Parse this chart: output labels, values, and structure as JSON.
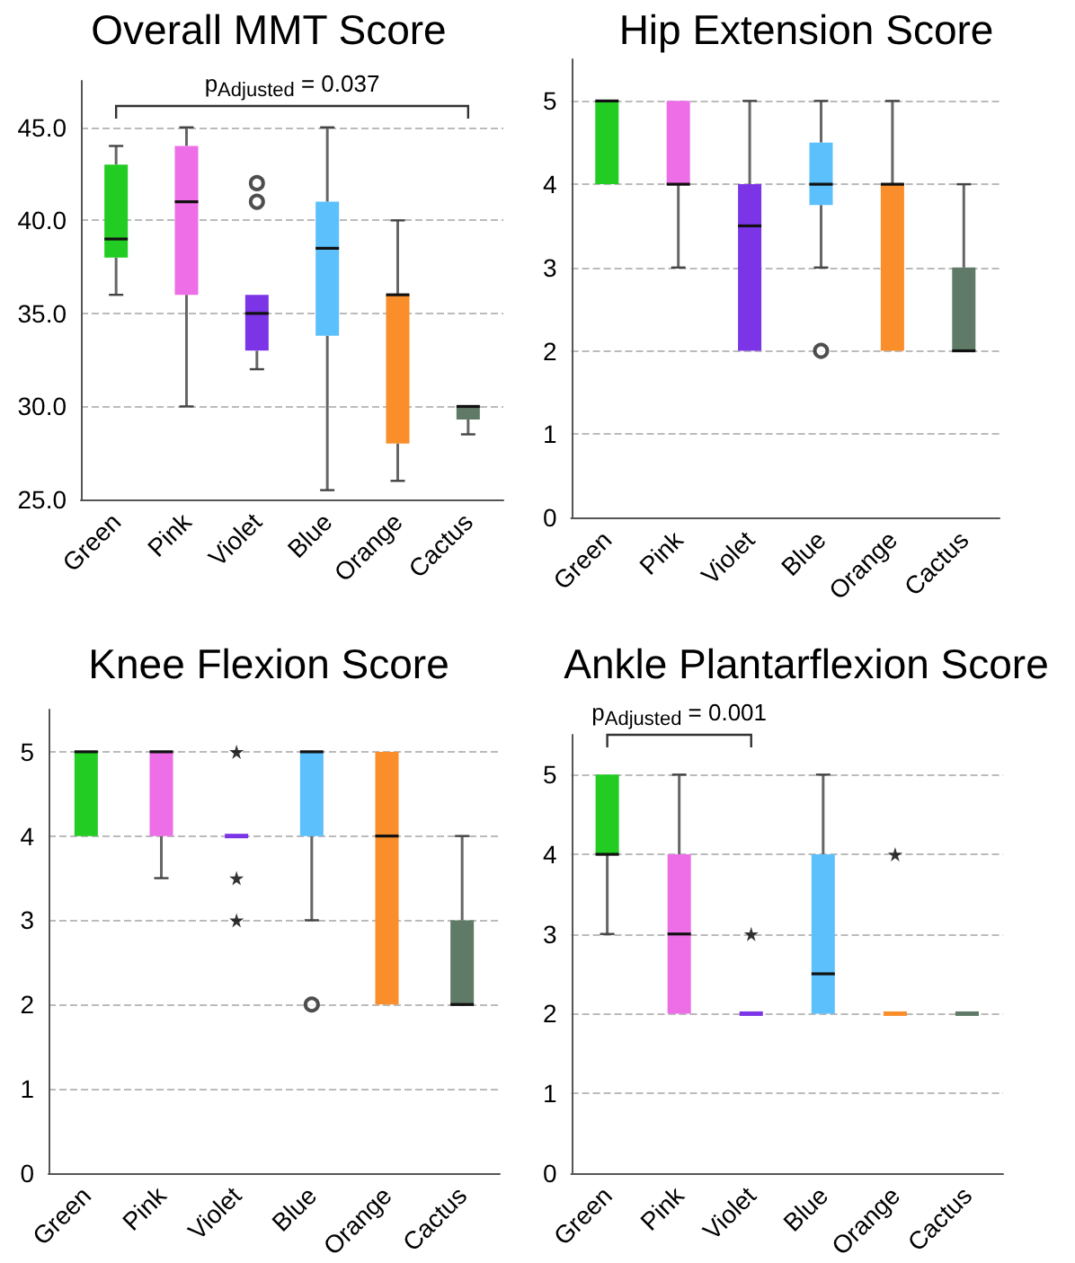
{
  "chart_data": [
    {
      "type": "box",
      "title": "Overall MMT Score",
      "categories": [
        "Green",
        "Pink",
        "Violet",
        "Blue",
        "Orange",
        "Cactus"
      ],
      "colors": [
        "#22cc22",
        "#ee6ee8",
        "#7b35e6",
        "#5bc0fb",
        "#fa8e2a",
        "#5f7a66"
      ],
      "boxes": [
        {
          "low": 36,
          "q1": 38,
          "median": 39,
          "q3": 43,
          "high": 44
        },
        {
          "low": 30,
          "q1": 36,
          "median": 41,
          "q3": 44,
          "high": 45
        },
        {
          "low": 32,
          "q1": 33,
          "median": 35,
          "q3": 36,
          "high": 36,
          "outliers": [
            41,
            42
          ]
        },
        {
          "low": 25.5,
          "q1": 33.8,
          "median": 38.5,
          "q3": 41,
          "high": 45
        },
        {
          "low": 26,
          "q1": 28,
          "median": 36,
          "q3": 36,
          "high": 40
        },
        {
          "low": 28.5,
          "q1": 29.3,
          "median": 30,
          "q3": 30,
          "high": 30
        }
      ],
      "ylim": [
        25,
        47.5
      ],
      "yticks": [
        {
          "value": 25,
          "label": "25.0"
        },
        {
          "value": 30,
          "label": "30.0"
        },
        {
          "value": 35,
          "label": "35.0"
        },
        {
          "value": 40,
          "label": "40.0"
        },
        {
          "value": 45,
          "label": "45.0"
        }
      ],
      "grid": "y",
      "marker": "circle",
      "annotations": [
        "p$_{Adjusted}$ = 0.037"
      ]
    },
    {
      "type": "box",
      "title": "Hip Extension Score",
      "categories": [
        "Green",
        "Pink",
        "Violet",
        "Blue",
        "Orange",
        "Cactus"
      ],
      "colors": [
        "#22cc22",
        "#ee6ee8",
        "#7b35e6",
        "#5bc0fb",
        "#fa8e2a",
        "#5f7a66"
      ],
      "boxes": [
        {
          "low": 4,
          "q1": 4,
          "median": 5,
          "q3": 5,
          "high": 5
        },
        {
          "low": 3,
          "q1": 4,
          "median": 4,
          "q3": 5,
          "high": 5
        },
        {
          "low": 2,
          "q1": 2,
          "median": 3.5,
          "q3": 4,
          "high": 5
        },
        {
          "low": 3,
          "q1": 3.75,
          "median": 4,
          "q3": 4.5,
          "high": 5,
          "outliers": [
            2
          ]
        },
        {
          "low": 2,
          "q1": 2,
          "median": 4,
          "q3": 4,
          "high": 5
        },
        {
          "low": 2,
          "q1": 2,
          "median": 2,
          "q3": 3,
          "high": 4
        }
      ],
      "ylim": [
        0,
        5.5
      ],
      "yticks": [
        0,
        1,
        2,
        3,
        4,
        5
      ],
      "grid": "y",
      "marker": "circle"
    },
    {
      "type": "box",
      "title": "Knee Flexion Score",
      "categories": [
        "Green",
        "Pink",
        "Violet",
        "Blue",
        "Orange",
        "Cactus"
      ],
      "colors": [
        "#22cc22",
        "#ee6ee8",
        "#7b35e6",
        "#5bc0fb",
        "#fa8e2a",
        "#5f7a66"
      ],
      "boxes": [
        {
          "low": 4,
          "q1": 4,
          "median": 5,
          "q3": 5,
          "high": 5
        },
        {
          "low": 3.5,
          "q1": 4,
          "median": 5,
          "q3": 5,
          "high": 5
        },
        {
          "low": 4,
          "q1": 4,
          "median": 4,
          "q3": 4,
          "high": 4
        },
        {
          "low": 3,
          "q1": 4,
          "median": 5,
          "q3": 5,
          "high": 5,
          "outliers": [
            2
          ]
        },
        {
          "low": 2,
          "q1": 2,
          "median": 4,
          "q3": 5,
          "high": 5
        },
        {
          "low": 2,
          "q1": 2,
          "median": 2,
          "q3": 3,
          "high": 4
        }
      ],
      "series": [
        {
          "type": "scatter",
          "marker": "star",
          "color": "#000000",
          "x": [
            "Violet",
            "Violet",
            "Violet"
          ],
          "values": [
            5,
            3.5,
            3
          ]
        }
      ],
      "ylim": [
        0,
        5.5
      ],
      "yticks": [
        0,
        1,
        2,
        3,
        4,
        5
      ],
      "grid": "y",
      "marker": "circle"
    },
    {
      "type": "box",
      "title": "Ankle Plantarflexion Score",
      "categories": [
        "Green",
        "Pink",
        "Violet",
        "Blue",
        "Orange",
        "Cactus"
      ],
      "colors": [
        "#22cc22",
        "#ee6ee8",
        "#7b35e6",
        "#5bc0fb",
        "#fa8e2a",
        "#5f7a66"
      ],
      "boxes": [
        {
          "low": 3,
          "q1": 4,
          "median": 4,
          "q3": 5,
          "high": 5
        },
        {
          "low": 2,
          "q1": 2,
          "median": 3,
          "q3": 4,
          "high": 5
        },
        {
          "low": 2,
          "q1": 2,
          "median": 2,
          "q3": 2,
          "high": 2
        },
        {
          "low": 2,
          "q1": 2,
          "median": 2.5,
          "q3": 4,
          "high": 5
        },
        {
          "low": 2,
          "q1": 2,
          "median": 2,
          "q3": 2,
          "high": 2
        },
        {
          "low": 2,
          "q1": 2,
          "median": 2,
          "q3": 2,
          "high": 2
        }
      ],
      "series": [
        {
          "type": "scatter",
          "marker": "star",
          "color": "#000000",
          "x": [
            "Violet",
            "Orange"
          ],
          "values": [
            3,
            4
          ]
        }
      ],
      "ylim": [
        0,
        5.5
      ],
      "yticks": [
        0,
        1,
        2,
        3,
        4,
        5
      ],
      "grid": "y",
      "annotations": [
        "p$_{Adjusted}$ = 0.001"
      ]
    }
  ]
}
